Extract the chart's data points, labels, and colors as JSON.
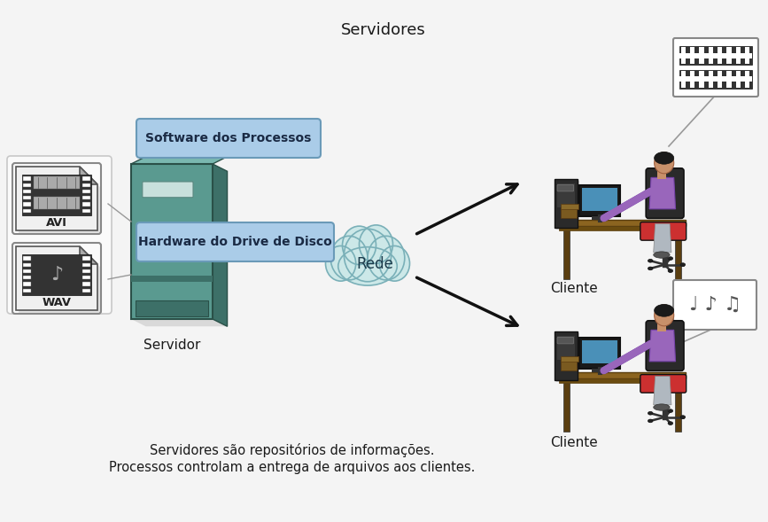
{
  "title": "Servidores",
  "label_servidor": "Servidor",
  "label_cliente1": "Cliente",
  "label_cliente2": "Cliente",
  "label_rede": "Rede",
  "label_software": "Software dos Processos",
  "label_hardware": "Hardware do Drive de Disco",
  "label_avi": "AVI",
  "label_wav": "WAV",
  "text_bottom1": "Servidores são repositórios de informações.",
  "text_bottom2": "Processos controlam a entrega de arquivos aos clientes.",
  "bg_color": "#f4f4f4",
  "software_box_color": "#aacce8",
  "hardware_box_color": "#aacce8",
  "server_main": "#5a9a90",
  "server_dark": "#3d7068",
  "server_light": "#7ab8b0",
  "server_slot": "#c8e0dc",
  "cloud_fill": "#cce8e8",
  "cloud_edge": "#7ab0b8",
  "arrow_color": "#111111",
  "text_color": "#1a1a1a",
  "file_border": "#555555",
  "film_dark": "#333333",
  "film_hole": "#ffffff",
  "desk_color": "#8B6420",
  "desk_dark": "#5a3e10",
  "chair_back": "#2a2a2a",
  "chair_seat": "#cc3030",
  "monitor_frame": "#1a1a1a",
  "monitor_screen": "#4a90b8",
  "tower_color": "#2a2a2a",
  "person_skin": "#c8906a",
  "person_shirt": "#9966bb",
  "person_pants": "#b0b8c0",
  "connector_color": "#999999"
}
